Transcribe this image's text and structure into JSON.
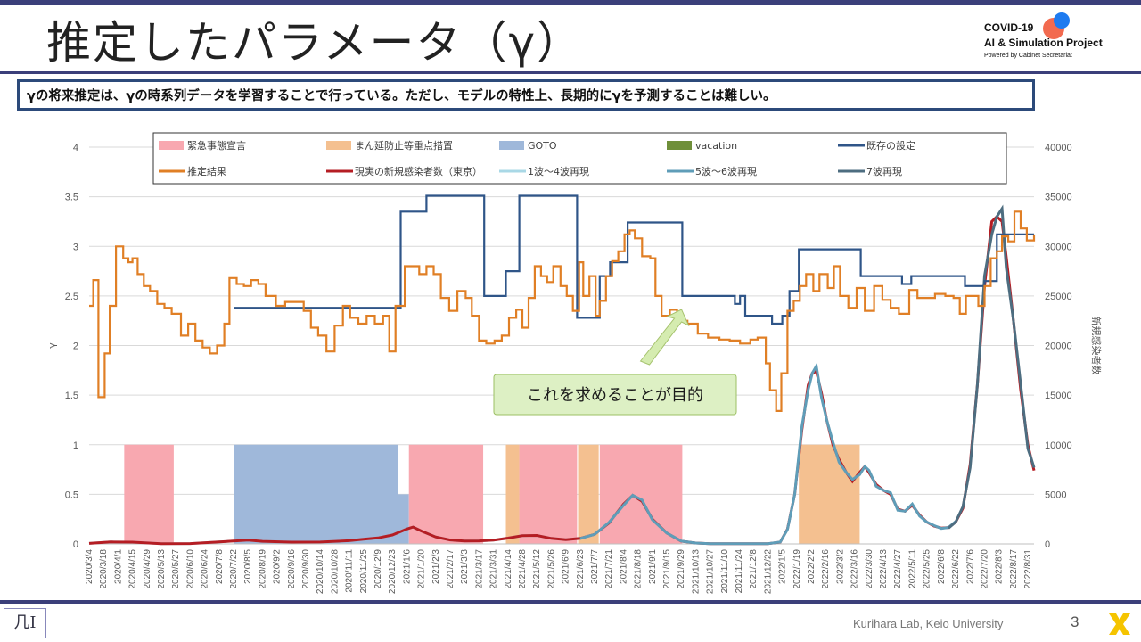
{
  "slide": {
    "title": "推定したパラメータ（γ）",
    "summary": "γの将来推定は、γの時系列データを学習することで行っている。ただし、モデルの特性上、長期的にγを予測することは難しい。",
    "logo_line1": "COVID-19",
    "logo_line2": "AI & Simulation Project",
    "logo_line3": "Powered by Cabinet Secretariat",
    "footer_logo": "几I",
    "footer_lab": "Kurihara Lab, Keio University",
    "page_number": "3"
  },
  "chart_data": {
    "type": "line",
    "ylabel_left": "γ",
    "ylabel_right": "新規感染者数",
    "ylim_left": [
      0,
      4
    ],
    "yticks_left": [
      "0",
      "0.5",
      "1",
      "1.5",
      "2",
      "2.5",
      "3",
      "3.5",
      "4"
    ],
    "ylim_right": [
      0,
      40000
    ],
    "yticks_right": [
      "0",
      "5000",
      "10000",
      "15000",
      "20000",
      "25000",
      "30000",
      "35000",
      "40000"
    ],
    "grid": true,
    "legend_position": "top",
    "x_start": "2020/3/4",
    "x_end": "2022/9/6",
    "x_ticks": [
      "2020/3/4",
      "2020/3/18",
      "2020/4/1",
      "2020/4/15",
      "2020/4/29",
      "2020/5/13",
      "2020/5/27",
      "2020/6/10",
      "2020/6/24",
      "2020/7/8",
      "2020/7/22",
      "2020/8/5",
      "2020/8/19",
      "2020/9/2",
      "2020/9/16",
      "2020/9/30",
      "2020/10/14",
      "2020/10/28",
      "2020/11/11",
      "2020/11/25",
      "2020/12/9",
      "2020/12/23",
      "2021/1/6",
      "2021/1/20",
      "2021/2/3",
      "2021/2/17",
      "2021/3/3",
      "2021/3/17",
      "2021/3/31",
      "2021/4/14",
      "2021/4/28",
      "2021/5/12",
      "2021/5/26",
      "2021/6/9",
      "2021/6/23",
      "2021/7/7",
      "2021/7/21",
      "2021/8/4",
      "2021/8/18",
      "2021/9/1",
      "2021/9/15",
      "2021/9/29",
      "2021/10/13",
      "2021/10/27",
      "2021/11/10",
      "2021/11/24",
      "2021/12/8",
      "2021/12/22",
      "2022/1/5",
      "2022/1/19",
      "2022/2/2",
      "2022/2/16",
      "2022/3/2",
      "2022/3/16",
      "2022/3/30",
      "2022/4/13",
      "2022/4/27",
      "2022/5/11",
      "2022/5/25",
      "2022/6/8",
      "2022/6/22",
      "2022/7/6",
      "2022/7/20",
      "2022/8/3",
      "2022/8/17",
      "2022/8/31"
    ],
    "legend": [
      {
        "label": "緊急事態宣言",
        "kind": "area",
        "color": "#f8a8b0"
      },
      {
        "label": "まん延防止等重点措置",
        "kind": "area",
        "color": "#f4c090"
      },
      {
        "label": "GOTO",
        "kind": "area",
        "color": "#9fb8da"
      },
      {
        "label": "vacation",
        "kind": "area",
        "color": "#6f8f3a"
      },
      {
        "label": "既存の設定",
        "kind": "line",
        "color": "#2f5588"
      },
      {
        "label": "推定結果",
        "kind": "line",
        "color": "#e07f25"
      },
      {
        "label": "現実の新規感染者数（東京）",
        "kind": "line",
        "color": "#b51d23"
      },
      {
        "label": "1波～4波再現",
        "kind": "line",
        "color": "#a9d8e6"
      },
      {
        "label": "5波～6波再現",
        "kind": "line",
        "color": "#5f9db8"
      },
      {
        "label": "7波再現",
        "kind": "line",
        "color": "#4d6d80"
      }
    ],
    "regions": [
      {
        "series": "緊急事態宣言",
        "start": "2020/4/7",
        "end": "2020/5/25",
        "level": 1
      },
      {
        "series": "GOTO",
        "start": "2020/7/22",
        "end": "2020/12/28",
        "level": 1
      },
      {
        "series": "GOTO",
        "start": "2020/12/28",
        "end": "2021/1/8",
        "level": 0.5
      },
      {
        "series": "緊急事態宣言",
        "start": "2021/1/8",
        "end": "2021/3/21",
        "level": 1
      },
      {
        "series": "まん延防止等重点措置",
        "start": "2021/4/12",
        "end": "2021/4/25",
        "level": 1
      },
      {
        "series": "緊急事態宣言",
        "start": "2021/4/25",
        "end": "2021/6/20",
        "level": 1
      },
      {
        "series": "まん延防止等重点措置",
        "start": "2021/6/21",
        "end": "2021/7/11",
        "level": 1
      },
      {
        "series": "緊急事態宣言",
        "start": "2021/7/12",
        "end": "2021/9/30",
        "level": 1
      },
      {
        "series": "まん延防止等重点措置",
        "start": "2022/1/21",
        "end": "2022/3/21",
        "level": 1
      }
    ],
    "existing_setting": [
      [
        "2020/7/22",
        2.38
      ],
      [
        "2020/12/31",
        2.38
      ],
      [
        "2020/12/31",
        3.35
      ],
      [
        "2021/1/25",
        3.35
      ],
      [
        "2021/1/25",
        3.51
      ],
      [
        "2021/3/22",
        3.51
      ],
      [
        "2021/3/22",
        2.5
      ],
      [
        "2021/4/12",
        2.5
      ],
      [
        "2021/4/12",
        2.75
      ],
      [
        "2021/4/25",
        2.75
      ],
      [
        "2021/4/25",
        3.51
      ],
      [
        "2021/6/20",
        3.51
      ],
      [
        "2021/6/20",
        2.28
      ],
      [
        "2021/7/12",
        2.28
      ],
      [
        "2021/7/12",
        2.7
      ],
      [
        "2021/7/22",
        2.7
      ],
      [
        "2021/7/22",
        2.84
      ],
      [
        "2021/8/8",
        2.84
      ],
      [
        "2021/8/8",
        3.24
      ],
      [
        "2021/9/30",
        3.24
      ],
      [
        "2021/9/30",
        2.5
      ],
      [
        "2021/11/20",
        2.5
      ],
      [
        "2021/11/20",
        2.42
      ],
      [
        "2021/11/25",
        2.42
      ],
      [
        "2021/11/25",
        2.5
      ],
      [
        "2021/11/30",
        2.5
      ],
      [
        "2021/11/30",
        2.3
      ],
      [
        "2021/12/26",
        2.3
      ],
      [
        "2021/12/26",
        2.22
      ],
      [
        "2022/1/5",
        2.22
      ],
      [
        "2022/1/5",
        2.3
      ],
      [
        "2022/1/12",
        2.3
      ],
      [
        "2022/1/12",
        2.55
      ],
      [
        "2022/1/21",
        2.55
      ],
      [
        "2022/1/21",
        2.97
      ],
      [
        "2022/3/22",
        2.97
      ],
      [
        "2022/3/22",
        2.7
      ],
      [
        "2022/5/1",
        2.7
      ],
      [
        "2022/5/1",
        2.62
      ],
      [
        "2022/5/10",
        2.62
      ],
      [
        "2022/5/10",
        2.7
      ],
      [
        "2022/7/1",
        2.7
      ],
      [
        "2022/7/1",
        2.6
      ],
      [
        "2022/7/20",
        2.6
      ],
      [
        "2022/7/20",
        2.65
      ],
      [
        "2022/8/1",
        2.65
      ],
      [
        "2022/8/1",
        3.12
      ],
      [
        "2022/9/6",
        3.12
      ]
    ],
    "estimated": [
      [
        "2020/3/4",
        2.4
      ],
      [
        "2020/3/7",
        2.4
      ],
      [
        "2020/3/8",
        2.66
      ],
      [
        "2020/3/12",
        2.66
      ],
      [
        "2020/3/13",
        1.48
      ],
      [
        "2020/3/17",
        1.48
      ],
      [
        "2020/3/19",
        1.92
      ],
      [
        "2020/3/22",
        1.92
      ],
      [
        "2020/3/24",
        2.4
      ],
      [
        "2020/3/27",
        2.4
      ],
      [
        "2020/3/30",
        3.0
      ],
      [
        "2020/4/4",
        3.0
      ],
      [
        "2020/4/6",
        2.88
      ],
      [
        "2020/4/11",
        2.84
      ],
      [
        "2020/4/15",
        2.88
      ],
      [
        "2020/4/20",
        2.72
      ],
      [
        "2020/4/26",
        2.6
      ],
      [
        "2020/5/2",
        2.55
      ],
      [
        "2020/5/9",
        2.42
      ],
      [
        "2020/5/16",
        2.38
      ],
      [
        "2020/5/23",
        2.32
      ],
      [
        "2020/6/1",
        2.1
      ],
      [
        "2020/6/8",
        2.22
      ],
      [
        "2020/6/15",
        2.05
      ],
      [
        "2020/6/22",
        1.98
      ],
      [
        "2020/6/29",
        1.92
      ],
      [
        "2020/7/6",
        2.0
      ],
      [
        "2020/7/13",
        2.22
      ],
      [
        "2020/7/18",
        2.68
      ],
      [
        "2020/7/25",
        2.62
      ],
      [
        "2020/8/1",
        2.6
      ],
      [
        "2020/8/8",
        2.66
      ],
      [
        "2020/8/15",
        2.62
      ],
      [
        "2020/8/22",
        2.5
      ],
      [
        "2020/9/1",
        2.4
      ],
      [
        "2020/9/10",
        2.44
      ],
      [
        "2020/9/20",
        2.44
      ],
      [
        "2020/9/28",
        2.35
      ],
      [
        "2020/10/5",
        2.18
      ],
      [
        "2020/10/12",
        2.1
      ],
      [
        "2020/10/20",
        1.94
      ],
      [
        "2020/10/28",
        2.2
      ],
      [
        "2020/11/5",
        2.4
      ],
      [
        "2020/11/12",
        2.28
      ],
      [
        "2020/11/20",
        2.22
      ],
      [
        "2020/11/28",
        2.3
      ],
      [
        "2020/12/6",
        2.22
      ],
      [
        "2020/12/14",
        2.3
      ],
      [
        "2020/12/20",
        1.94
      ],
      [
        "2020/12/26",
        2.4
      ],
      [
        "2021/1/4",
        2.8
      ],
      [
        "2021/1/10",
        2.8
      ],
      [
        "2021/1/18",
        2.72
      ],
      [
        "2021/1/25",
        2.8
      ],
      [
        "2021/2/1",
        2.72
      ],
      [
        "2021/2/8",
        2.48
      ],
      [
        "2021/2/16",
        2.35
      ],
      [
        "2021/2/24",
        2.55
      ],
      [
        "2021/3/4",
        2.48
      ],
      [
        "2021/3/10",
        2.3
      ],
      [
        "2021/3/17",
        2.05
      ],
      [
        "2021/3/24",
        2.02
      ],
      [
        "2021/4/1",
        2.05
      ],
      [
        "2021/4/8",
        2.1
      ],
      [
        "2021/4/15",
        2.28
      ],
      [
        "2021/4/22",
        2.36
      ],
      [
        "2021/4/28",
        2.18
      ],
      [
        "2021/5/4",
        2.48
      ],
      [
        "2021/5/10",
        2.8
      ],
      [
        "2021/5/16",
        2.7
      ],
      [
        "2021/5/22",
        2.64
      ],
      [
        "2021/5/28",
        2.8
      ],
      [
        "2021/6/4",
        2.6
      ],
      [
        "2021/6/10",
        2.5
      ],
      [
        "2021/6/16",
        2.35
      ],
      [
        "2021/6/22",
        2.84
      ],
      [
        "2021/6/26",
        2.5
      ],
      [
        "2021/7/2",
        2.7
      ],
      [
        "2021/7/8",
        2.3
      ],
      [
        "2021/7/12",
        2.45
      ],
      [
        "2021/7/18",
        2.7
      ],
      [
        "2021/7/24",
        2.85
      ],
      [
        "2021/7/30",
        2.95
      ],
      [
        "2021/8/5",
        3.12
      ],
      [
        "2021/8/10",
        3.16
      ],
      [
        "2021/8/15",
        3.08
      ],
      [
        "2021/8/22",
        2.9
      ],
      [
        "2021/8/30",
        2.88
      ],
      [
        "2021/9/4",
        2.5
      ],
      [
        "2021/9/10",
        2.3
      ],
      [
        "2021/9/18",
        2.36
      ],
      [
        "2021/9/25",
        2.25
      ],
      [
        "2021/10/5",
        2.22
      ],
      [
        "2021/10/15",
        2.12
      ],
      [
        "2021/10/25",
        2.08
      ],
      [
        "2021/11/5",
        2.06
      ],
      [
        "2021/11/15",
        2.05
      ],
      [
        "2021/11/25",
        2.02
      ],
      [
        "2021/12/5",
        2.06
      ],
      [
        "2021/12/12",
        2.08
      ],
      [
        "2021/12/20",
        1.82
      ],
      [
        "2021/12/24",
        1.55
      ],
      [
        "2021/12/30",
        1.34
      ],
      [
        "2022/1/4",
        1.72
      ],
      [
        "2022/1/10",
        2.35
      ],
      [
        "2022/1/16",
        2.45
      ],
      [
        "2022/1/22",
        2.6
      ],
      [
        "2022/1/28",
        2.72
      ],
      [
        "2022/2/4",
        2.55
      ],
      [
        "2022/2/10",
        2.72
      ],
      [
        "2022/2/18",
        2.58
      ],
      [
        "2022/2/24",
        2.8
      ],
      [
        "2022/3/2",
        2.5
      ],
      [
        "2022/3/10",
        2.38
      ],
      [
        "2022/3/18",
        2.58
      ],
      [
        "2022/3/26",
        2.35
      ],
      [
        "2022/4/4",
        2.6
      ],
      [
        "2022/4/12",
        2.46
      ],
      [
        "2022/4/20",
        2.38
      ],
      [
        "2022/4/28",
        2.32
      ],
      [
        "2022/5/8",
        2.56
      ],
      [
        "2022/5/16",
        2.48
      ],
      [
        "2022/5/24",
        2.48
      ],
      [
        "2022/6/2",
        2.52
      ],
      [
        "2022/6/12",
        2.5
      ],
      [
        "2022/6/20",
        2.48
      ],
      [
        "2022/6/26",
        2.32
      ],
      [
        "2022/7/2",
        2.5
      ],
      [
        "2022/7/8",
        2.5
      ],
      [
        "2022/7/14",
        2.4
      ],
      [
        "2022/7/20",
        2.6
      ],
      [
        "2022/7/26",
        2.88
      ],
      [
        "2022/8/1",
        2.95
      ],
      [
        "2022/8/6",
        3.1
      ],
      [
        "2022/8/12",
        3.05
      ],
      [
        "2022/8/18",
        3.35
      ],
      [
        "2022/8/24",
        3.18
      ],
      [
        "2022/8/30",
        3.06
      ],
      [
        "2022/9/6",
        3.12
      ]
    ],
    "actual_cases": [
      [
        "2020/3/4",
        50
      ],
      [
        "2020/3/25",
        200
      ],
      [
        "2020/4/15",
        180
      ],
      [
        "2020/5/13",
        30
      ],
      [
        "2020/6/10",
        40
      ],
      [
        "2020/7/8",
        200
      ],
      [
        "2020/8/5",
        380
      ],
      [
        "2020/8/19",
        260
      ],
      [
        "2020/9/16",
        180
      ],
      [
        "2020/10/14",
        190
      ],
      [
        "2020/11/11",
        320
      ],
      [
        "2020/11/25",
        480
      ],
      [
        "2020/12/9",
        600
      ],
      [
        "2020/12/23",
        900
      ],
      [
        "2021/1/6",
        1500
      ],
      [
        "2021/1/12",
        1700
      ],
      [
        "2021/1/20",
        1300
      ],
      [
        "2021/2/3",
        700
      ],
      [
        "2021/2/17",
        400
      ],
      [
        "2021/3/3",
        290
      ],
      [
        "2021/3/17",
        310
      ],
      [
        "2021/3/31",
        380
      ],
      [
        "2021/4/14",
        580
      ],
      [
        "2021/4/28",
        830
      ],
      [
        "2021/5/12",
        850
      ],
      [
        "2021/5/26",
        560
      ],
      [
        "2021/6/9",
        420
      ],
      [
        "2021/6/23",
        560
      ],
      [
        "2021/7/7",
        960
      ],
      [
        "2021/7/21",
        2100
      ],
      [
        "2021/8/4",
        4000
      ],
      [
        "2021/8/13",
        4900
      ],
      [
        "2021/8/22",
        4300
      ],
      [
        "2021/9/1",
        2500
      ],
      [
        "2021/9/15",
        1100
      ],
      [
        "2021/9/29",
        280
      ],
      [
        "2021/10/13",
        90
      ],
      [
        "2021/10/27",
        30
      ],
      [
        "2021/11/24",
        15
      ],
      [
        "2021/12/8",
        15
      ],
      [
        "2021/12/22",
        30
      ],
      [
        "2022/1/3",
        180
      ],
      [
        "2022/1/10",
        1500
      ],
      [
        "2022/1/17",
        5000
      ],
      [
        "2022/1/24",
        11500
      ],
      [
        "2022/1/30",
        16000
      ],
      [
        "2022/2/3",
        17200
      ],
      [
        "2022/2/7",
        17400
      ],
      [
        "2022/2/12",
        15200
      ],
      [
        "2022/2/17",
        12500
      ],
      [
        "2022/2/23",
        10000
      ],
      [
        "2022/3/1",
        8500
      ],
      [
        "2022/3/8",
        7200
      ],
      [
        "2022/3/14",
        6300
      ],
      [
        "2022/3/21",
        7200
      ],
      [
        "2022/3/26",
        7800
      ],
      [
        "2022/3/30",
        7200
      ],
      [
        "2022/4/6",
        6000
      ],
      [
        "2022/4/13",
        5400
      ],
      [
        "2022/4/20",
        5000
      ],
      [
        "2022/4/27",
        3500
      ],
      [
        "2022/5/4",
        3300
      ],
      [
        "2022/5/11",
        3900
      ],
      [
        "2022/5/18",
        2900
      ],
      [
        "2022/5/25",
        2200
      ],
      [
        "2022/6/1",
        1800
      ],
      [
        "2022/6/8",
        1600
      ],
      [
        "2022/6/15",
        1650
      ],
      [
        "2022/6/22",
        2200
      ],
      [
        "2022/6/29",
        3600
      ],
      [
        "2022/7/6",
        8000
      ],
      [
        "2022/7/13",
        16000
      ],
      [
        "2022/7/20",
        26000
      ],
      [
        "2022/7/27",
        32500
      ],
      [
        "2022/8/1",
        33000
      ],
      [
        "2022/8/6",
        32500
      ],
      [
        "2022/8/10",
        29000
      ],
      [
        "2022/8/17",
        22500
      ],
      [
        "2022/8/24",
        15500
      ],
      [
        "2022/8/31",
        10000
      ],
      [
        "2022/9/3",
        8700
      ],
      [
        "2022/9/6",
        7400
      ]
    ],
    "annotation": {
      "text": "これを求めることが目的",
      "target_date": "2021/10/1",
      "target_gamma": 2.4
    }
  }
}
